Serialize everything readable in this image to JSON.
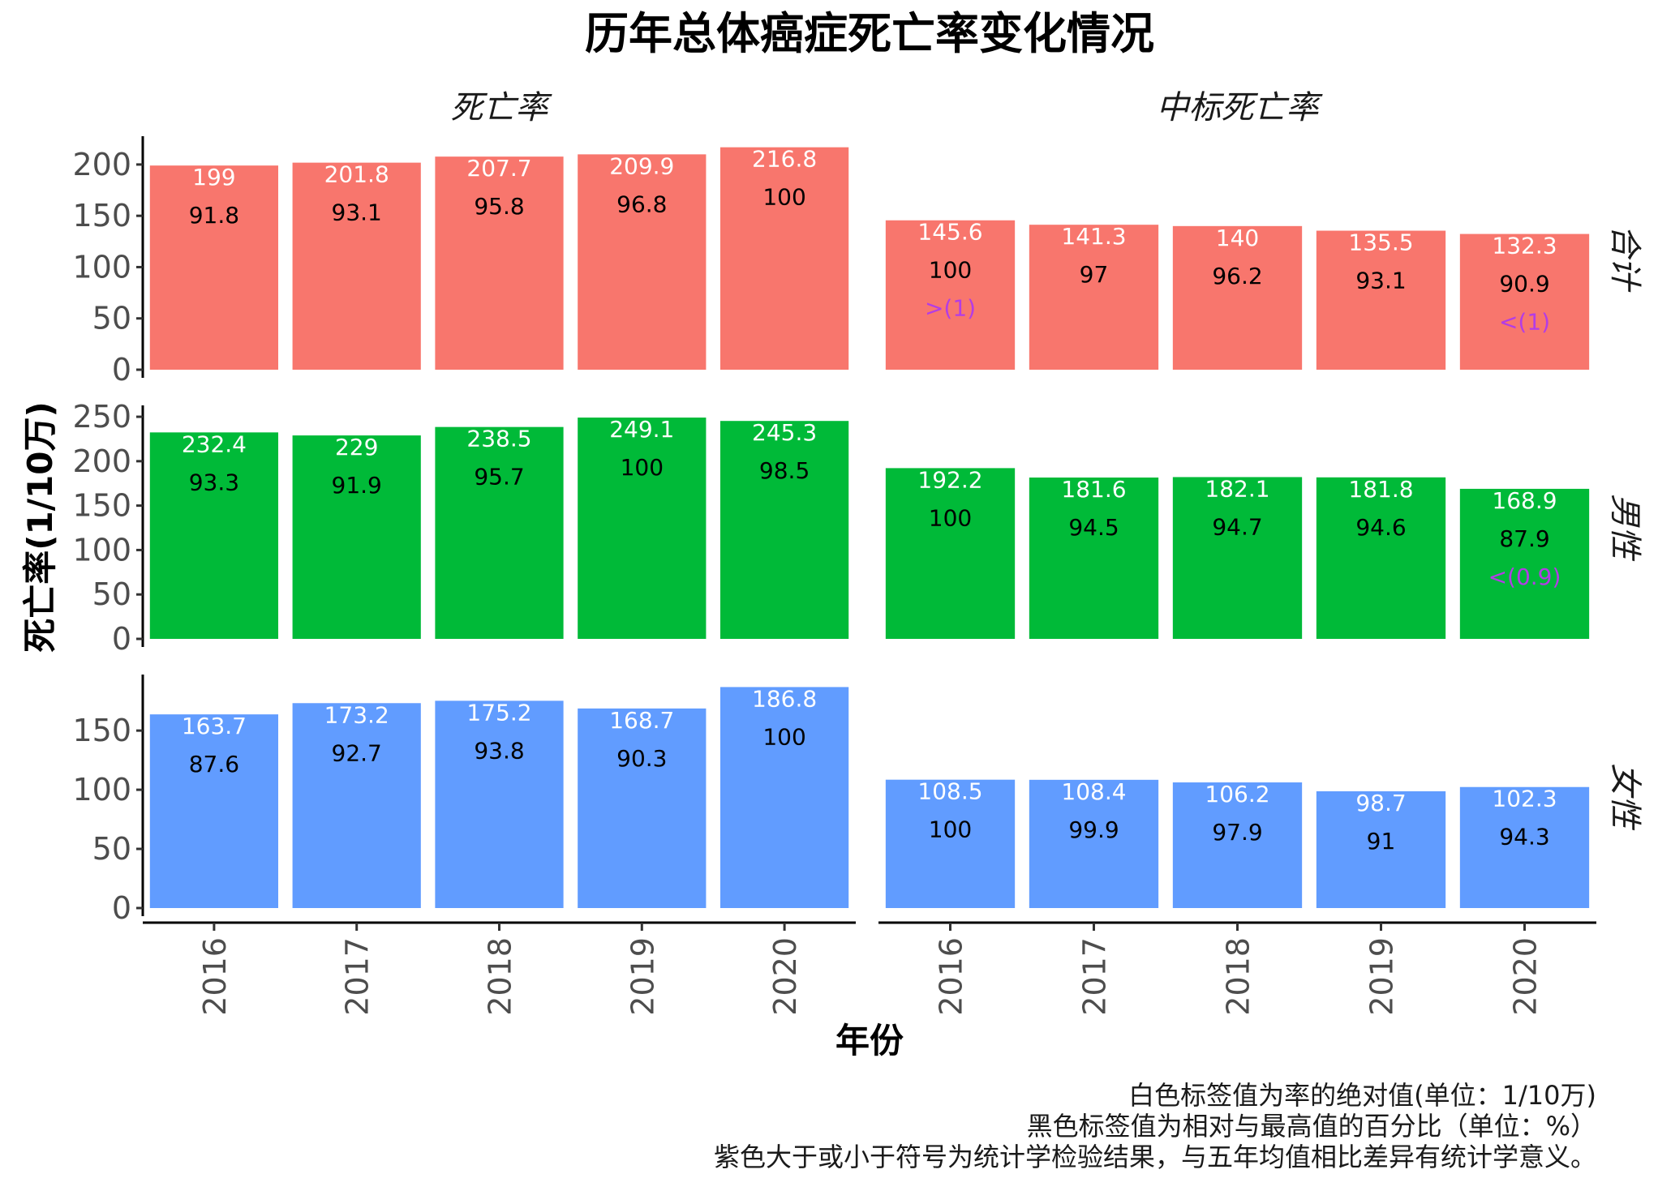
{
  "chart_data": {
    "type": "bar",
    "title": "历年总体癌症死亡率变化情况",
    "xlabel": "年份",
    "ylabel": "死亡率(1/10万)",
    "categories": [
      "2016",
      "2017",
      "2018",
      "2019",
      "2020"
    ],
    "facet_cols": [
      "死亡率",
      "中标死亡率"
    ],
    "facet_rows": [
      {
        "name": "合计",
        "color": "#F8766D",
        "yticks": [
          0,
          50,
          100,
          150,
          200
        ],
        "ylim": [
          0,
          226
        ]
      },
      {
        "name": "男性",
        "color": "#00BA38",
        "yticks": [
          0,
          50,
          100,
          150,
          200,
          250
        ],
        "ylim": [
          0,
          261
        ]
      },
      {
        "name": "女性",
        "color": "#619CFF",
        "yticks": [
          0,
          50,
          100,
          150
        ],
        "ylim": [
          0,
          196
        ]
      }
    ],
    "panels": [
      {
        "row": 0,
        "col": 0,
        "values": [
          199,
          201.8,
          207.7,
          209.9,
          216.8
        ],
        "value_labels": [
          "199",
          "201.8",
          "207.7",
          "209.9",
          "216.8"
        ],
        "percent_labels": [
          "91.8",
          "93.1",
          "95.8",
          "96.8",
          "100"
        ],
        "sig_labels": [
          "",
          "",
          "",
          "",
          ""
        ]
      },
      {
        "row": 0,
        "col": 1,
        "values": [
          145.6,
          141.3,
          140,
          135.5,
          132.3
        ],
        "value_labels": [
          "145.6",
          "141.3",
          "140",
          "135.5",
          "132.3"
        ],
        "percent_labels": [
          "100",
          "97",
          "96.2",
          "93.1",
          "90.9"
        ],
        "sig_labels": [
          ">(1)",
          "",
          "",
          "",
          "<(1)"
        ]
      },
      {
        "row": 1,
        "col": 0,
        "values": [
          232.4,
          229,
          238.5,
          249.1,
          245.3
        ],
        "value_labels": [
          "232.4",
          "229",
          "238.5",
          "249.1",
          "245.3"
        ],
        "percent_labels": [
          "93.3",
          "91.9",
          "95.7",
          "100",
          "98.5"
        ],
        "sig_labels": [
          "",
          "",
          "",
          "",
          ""
        ]
      },
      {
        "row": 1,
        "col": 1,
        "values": [
          192.2,
          181.6,
          182.1,
          181.8,
          168.9
        ],
        "value_labels": [
          "192.2",
          "181.6",
          "182.1",
          "181.8",
          "168.9"
        ],
        "percent_labels": [
          "100",
          "94.5",
          "94.7",
          "94.6",
          "87.9"
        ],
        "sig_labels": [
          "",
          "",
          "",
          "",
          "<(0.9)"
        ]
      },
      {
        "row": 2,
        "col": 0,
        "values": [
          163.7,
          173.2,
          175.2,
          168.7,
          186.8
        ],
        "value_labels": [
          "163.7",
          "173.2",
          "175.2",
          "168.7",
          "186.8"
        ],
        "percent_labels": [
          "87.6",
          "92.7",
          "93.8",
          "90.3",
          "100"
        ],
        "sig_labels": [
          "",
          "",
          "",
          "",
          ""
        ]
      },
      {
        "row": 2,
        "col": 1,
        "values": [
          108.5,
          108.4,
          106.2,
          98.7,
          102.3
        ],
        "value_labels": [
          "108.5",
          "108.4",
          "106.2",
          "98.7",
          "102.3"
        ],
        "percent_labels": [
          "100",
          "99.9",
          "97.9",
          "91",
          "94.3"
        ],
        "sig_labels": [
          "",
          "",
          "",
          "",
          ""
        ]
      }
    ],
    "sig_color": "#B33CE6",
    "label_colors": {
      "value": "#FFFFFF",
      "percent": "#000000"
    },
    "captions": [
      "白色标签值为率的绝对值(单位：1/10万)",
      "黑色标签值为相对与最高值的百分比（单位：%）",
      "紫色大于或小于符号为统计学检验结果，与五年均值相比差异有统计学意义。"
    ],
    "grid": false,
    "legend": "none"
  }
}
